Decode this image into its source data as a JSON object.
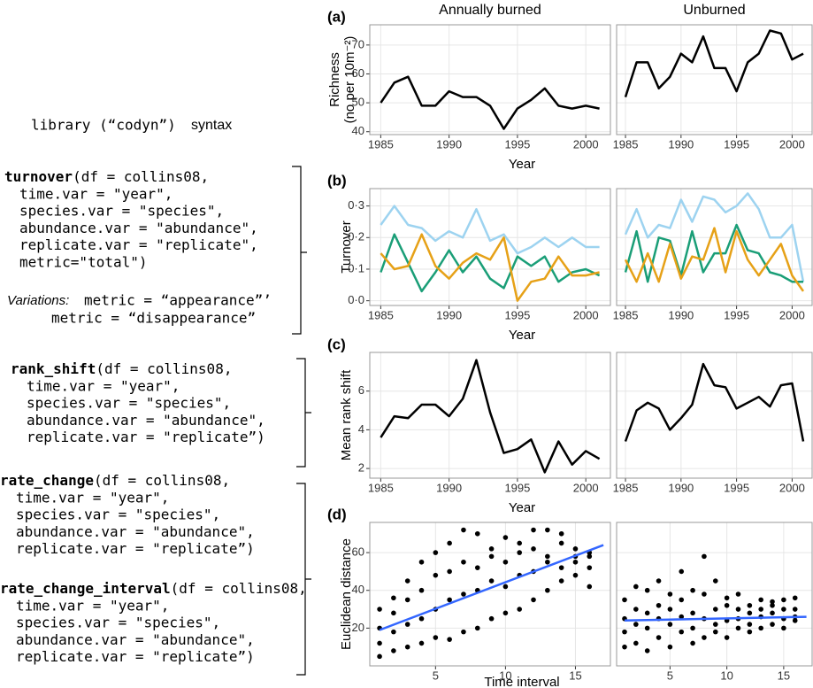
{
  "header": {
    "library": "library (“codyn”)",
    "syntax": "syntax"
  },
  "code": [
    {
      "name": "turnover",
      "lines": [
        "(df = collins08,",
        "time.var = \"year\",",
        "species.var = \"species\",",
        "abundance.var = \"abundance\",",
        "replicate.var = \"replicate\",",
        "metric=\"total\")"
      ]
    },
    {
      "name": "rank_shift",
      "lines": [
        "(df = collins08,",
        "time.var = \"year\",",
        "species.var = \"species\",",
        "abundance.var = \"abundance\",",
        "replicate.var = \"replicate”)"
      ]
    },
    {
      "name": "rate_change",
      "lines": [
        "(df = collins08,",
        "time.var = \"year\",",
        "species.var = \"species\",",
        "abundance.var = \"abundance\",",
        "replicate.var = \"replicate”)"
      ]
    },
    {
      "name": "rate_change_interval",
      "lines": [
        "(df = collins08,",
        "time.var = \"year\",",
        "species.var = \"species\",",
        "abundance.var = \"abundance\",",
        "replicate.var = \"replicate”)"
      ]
    }
  ],
  "variations": {
    "label": "Variations:",
    "lines": [
      "metric = “appearance”’",
      "metric = “disappearance”"
    ]
  },
  "chart_data": [
    {
      "type": "line",
      "label": "(a)",
      "ylabel": [
        "Richness",
        "(no per 10m⁻²)"
      ],
      "xlabel": "Year",
      "x": [
        1985,
        1986,
        1987,
        1988,
        1989,
        1990,
        1991,
        1992,
        1993,
        1994,
        1995,
        1996,
        1997,
        1998,
        1999,
        2000,
        2001
      ],
      "xlim": [
        1984.2,
        2001.8
      ],
      "xticks": [
        1985,
        1990,
        1995,
        2000
      ],
      "ylim": [
        39,
        77
      ],
      "yticks": [
        40,
        50,
        60,
        70
      ],
      "grid": true,
      "facets": [
        {
          "title": "Annually burned",
          "series": [
            {
              "color": "#000000",
              "values": [
                50,
                57,
                59,
                49,
                49,
                54,
                52,
                52,
                49,
                41,
                48,
                51,
                55,
                49,
                48,
                49,
                48
              ]
            }
          ]
        },
        {
          "title": "Unburned",
          "series": [
            {
              "color": "#000000",
              "values": [
                52,
                64,
                64,
                55,
                59,
                67,
                64,
                73,
                62,
                62,
                54,
                64,
                67,
                75,
                74,
                65,
                67
              ]
            }
          ]
        }
      ]
    },
    {
      "type": "line",
      "label": "(b)",
      "ylabel": [
        "Turnover"
      ],
      "xlabel": "Year",
      "x": [
        1985,
        1986,
        1987,
        1988,
        1989,
        1990,
        1991,
        1992,
        1993,
        1994,
        1995,
        1996,
        1997,
        1998,
        1999,
        2000,
        2001
      ],
      "xlim": [
        1984.2,
        2001.8
      ],
      "xticks": [
        1985,
        1990,
        1995,
        2000
      ],
      "ylim": [
        -0.015,
        0.355
      ],
      "yticks": [
        {
          "value": 0,
          "label": "0·0"
        },
        {
          "value": 0.1,
          "label": "0·1"
        },
        {
          "value": 0.2,
          "label": "0·2"
        },
        {
          "value": 0.3,
          "label": "0·3"
        }
      ],
      "grid": true,
      "facets": [
        {
          "series": [
            {
              "color": "#9dd3f0",
              "values": [
                0.24,
                0.3,
                0.24,
                0.23,
                0.19,
                0.22,
                0.2,
                0.29,
                0.19,
                0.21,
                0.15,
                0.17,
                0.2,
                0.17,
                0.2,
                0.17,
                0.17
              ]
            },
            {
              "color": "#1a9e77",
              "values": [
                0.09,
                0.21,
                0.12,
                0.03,
                0.09,
                0.16,
                0.09,
                0.14,
                0.07,
                0.04,
                0.14,
                0.11,
                0.14,
                0.06,
                0.09,
                0.1,
                0.08
              ]
            },
            {
              "color": "#e6a117",
              "values": [
                0.15,
                0.1,
                0.11,
                0.21,
                0.11,
                0.07,
                0.12,
                0.15,
                0.13,
                0.2,
                0.0,
                0.06,
                0.07,
                0.14,
                0.08,
                0.08,
                0.09
              ]
            }
          ]
        },
        {
          "series": [
            {
              "color": "#9dd3f0",
              "values": [
                0.21,
                0.29,
                0.2,
                0.24,
                0.23,
                0.32,
                0.25,
                0.33,
                0.32,
                0.28,
                0.3,
                0.34,
                0.29,
                0.2,
                0.2,
                0.24,
                0.06
              ]
            },
            {
              "color": "#1a9e77",
              "values": [
                0.09,
                0.22,
                0.06,
                0.2,
                0.19,
                0.08,
                0.22,
                0.09,
                0.15,
                0.15,
                0.24,
                0.16,
                0.15,
                0.09,
                0.08,
                0.06,
                0.06
              ]
            },
            {
              "color": "#e6a117",
              "values": [
                0.13,
                0.06,
                0.15,
                0.06,
                0.18,
                0.07,
                0.14,
                0.13,
                0.23,
                0.09,
                0.22,
                0.13,
                0.08,
                0.13,
                0.18,
                0.08,
                0.03
              ]
            }
          ]
        }
      ]
    },
    {
      "type": "line",
      "label": "(c)",
      "ylabel": [
        "Mean rank shift"
      ],
      "xlabel": "Year",
      "x": [
        1985,
        1986,
        1987,
        1988,
        1989,
        1990,
        1991,
        1992,
        1993,
        1994,
        1995,
        1996,
        1997,
        1998,
        1999,
        2000,
        2001
      ],
      "xlim": [
        1984.2,
        2001.8
      ],
      "xticks": [
        1985,
        1990,
        1995,
        2000
      ],
      "ylim": [
        1.5,
        8
      ],
      "yticks": [
        2,
        4,
        6
      ],
      "grid": true,
      "facets": [
        {
          "series": [
            {
              "color": "#000000",
              "values": [
                3.6,
                4.7,
                4.6,
                5.3,
                5.3,
                4.7,
                5.6,
                7.6,
                4.9,
                2.8,
                3.0,
                3.5,
                1.8,
                3.4,
                2.2,
                2.9,
                2.5
              ]
            }
          ]
        },
        {
          "series": [
            {
              "color": "#000000",
              "values": [
                3.4,
                5.0,
                5.4,
                5.1,
                4.0,
                4.6,
                5.3,
                7.4,
                6.3,
                6.2,
                5.1,
                5.4,
                5.7,
                5.2,
                6.3,
                6.4,
                3.4
              ]
            }
          ]
        }
      ]
    },
    {
      "type": "scatter",
      "label": "(d)",
      "ylabel": [
        "Euclidean distance"
      ],
      "xlabel": "Time interval",
      "color": "#000000",
      "xlim": [
        0.3,
        17.5
      ],
      "xticks": [
        5,
        10,
        15
      ],
      "ylim": [
        0,
        76
      ],
      "yticks": [
        20,
        40,
        60
      ],
      "grid": true,
      "facets": [
        {
          "x": [
            1,
            1,
            1,
            1,
            2,
            2,
            2,
            2,
            3,
            3,
            3,
            3,
            4,
            4,
            4,
            4,
            5,
            5,
            5,
            5,
            6,
            6,
            6,
            6,
            7,
            7,
            7,
            7,
            8,
            8,
            8,
            8,
            9,
            9,
            9,
            9,
            10,
            10,
            10,
            10,
            11,
            11,
            11,
            11,
            12,
            12,
            12,
            12,
            13,
            13,
            13,
            13,
            14,
            14,
            14,
            14,
            15,
            15,
            15,
            15,
            16,
            16,
            16,
            16
          ],
          "values": [
            5,
            12,
            20,
            30,
            8,
            18,
            28,
            36,
            10,
            22,
            35,
            45,
            12,
            25,
            40,
            55,
            15,
            30,
            48,
            60,
            14,
            35,
            50,
            65,
            18,
            38,
            55,
            72,
            20,
            40,
            52,
            70,
            25,
            45,
            58,
            62,
            28,
            42,
            55,
            68,
            30,
            48,
            60,
            65,
            35,
            50,
            62,
            72,
            40,
            55,
            58,
            72,
            45,
            52,
            65,
            70,
            48,
            58,
            62,
            55,
            52,
            58,
            42,
            60
          ],
          "fit": {
            "color": "#3366ff",
            "x": [
              1,
              17
            ],
            "values": [
              19,
              64
            ]
          }
        },
        {
          "x": [
            1,
            1,
            1,
            1,
            2,
            2,
            2,
            2,
            3,
            3,
            3,
            3,
            4,
            4,
            4,
            4,
            5,
            5,
            5,
            5,
            6,
            6,
            6,
            6,
            7,
            7,
            7,
            7,
            8,
            8,
            8,
            8,
            9,
            9,
            9,
            9,
            10,
            10,
            10,
            10,
            11,
            11,
            11,
            11,
            12,
            12,
            12,
            12,
            13,
            13,
            13,
            13,
            14,
            14,
            14,
            14,
            15,
            15,
            15,
            15,
            16,
            16,
            16,
            16
          ],
          "values": [
            10,
            18,
            25,
            35,
            12,
            22,
            30,
            42,
            8,
            20,
            28,
            40,
            15,
            25,
            32,
            45,
            10,
            22,
            30,
            38,
            18,
            26,
            35,
            50,
            12,
            20,
            28,
            40,
            15,
            25,
            38,
            58,
            18,
            22,
            30,
            45,
            15,
            24,
            32,
            36,
            20,
            25,
            30,
            38,
            18,
            22,
            28,
            32,
            20,
            26,
            30,
            35,
            22,
            28,
            32,
            34,
            20,
            25,
            30,
            35,
            24,
            26,
            30,
            36
          ],
          "fit": {
            "color": "#3366ff",
            "x": [
              1,
              17
            ],
            "values": [
              24,
              26
            ]
          }
        }
      ]
    }
  ]
}
